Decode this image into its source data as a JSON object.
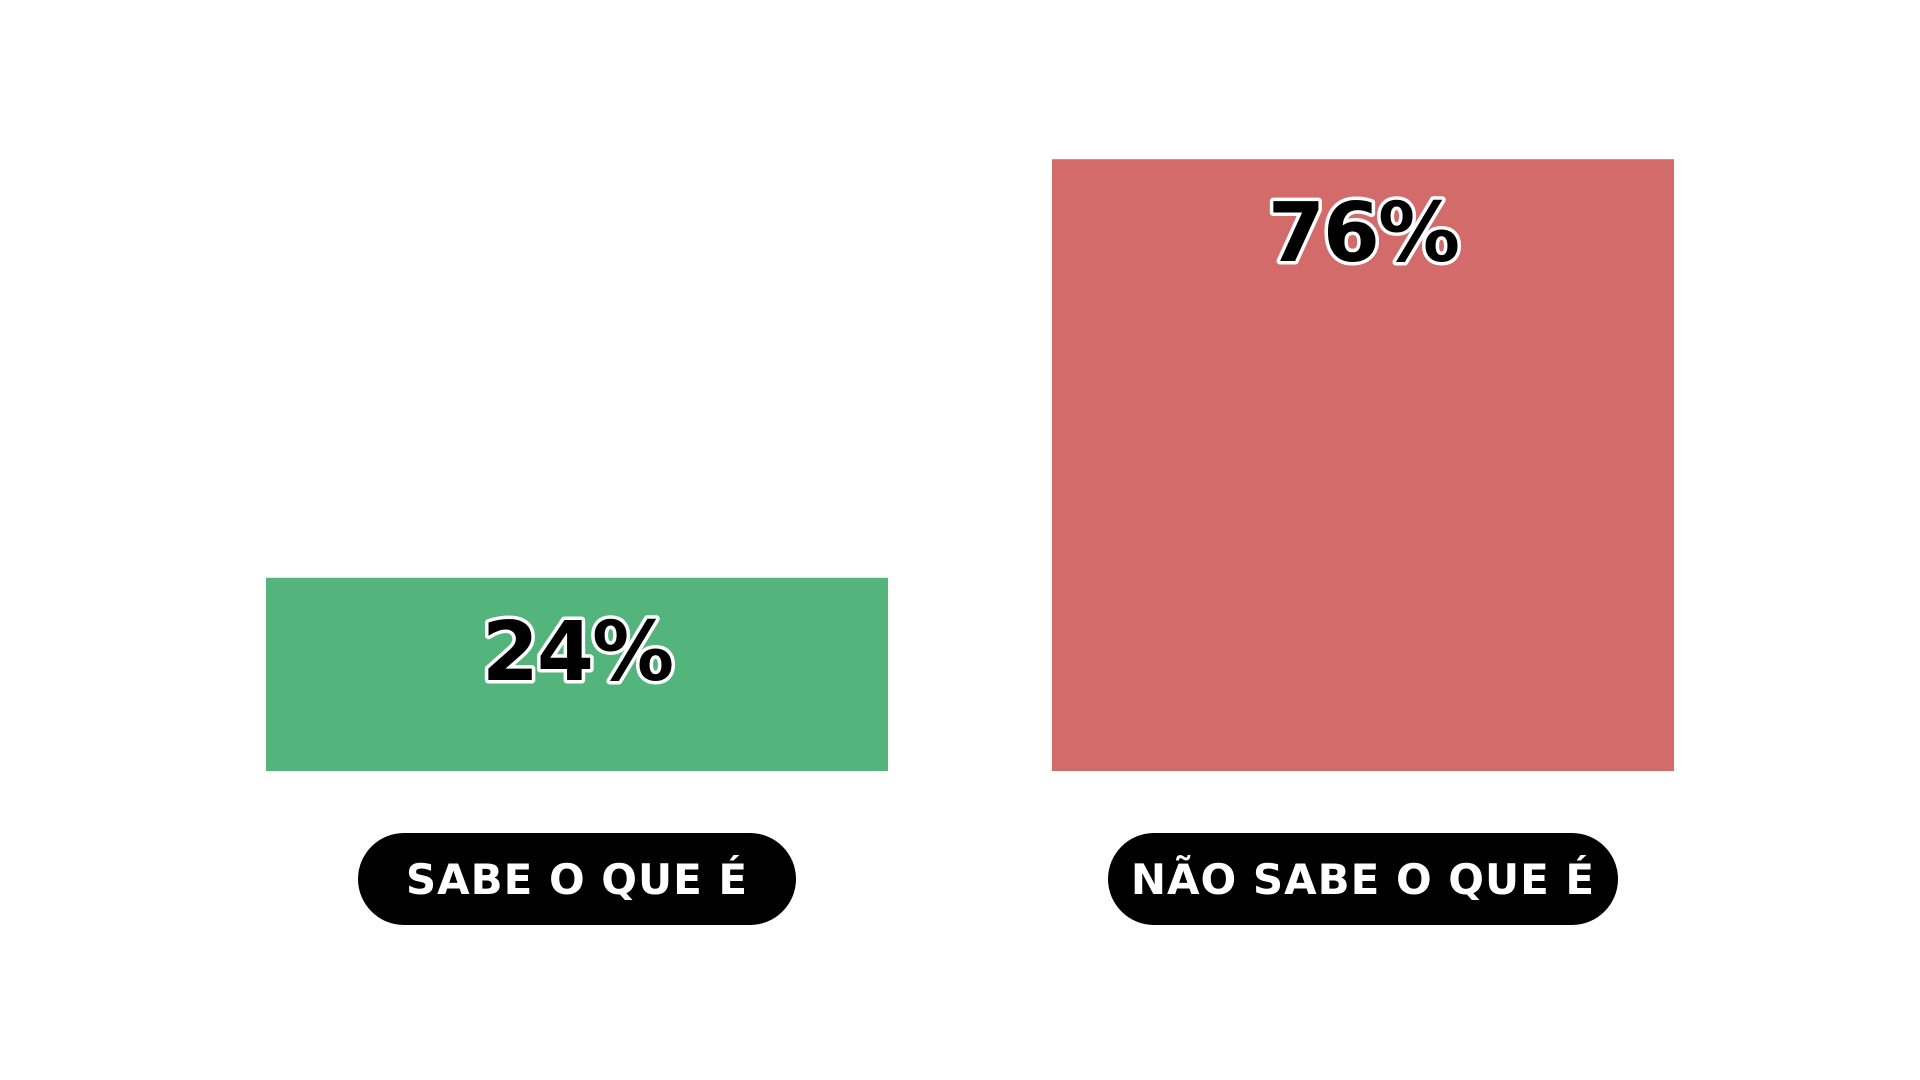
{
  "chart_data": {
    "type": "bar",
    "categories": [
      "SABE O QUE É",
      "NÃO SABE O QUE É"
    ],
    "values": [
      24,
      76
    ],
    "value_labels": [
      "24%",
      "76%"
    ],
    "colors": [
      "#54b57c",
      "#d46b6b"
    ],
    "unit": "%",
    "ylim": [
      0,
      100
    ],
    "grid": false,
    "title": "",
    "xlabel": "",
    "ylabel": ""
  }
}
